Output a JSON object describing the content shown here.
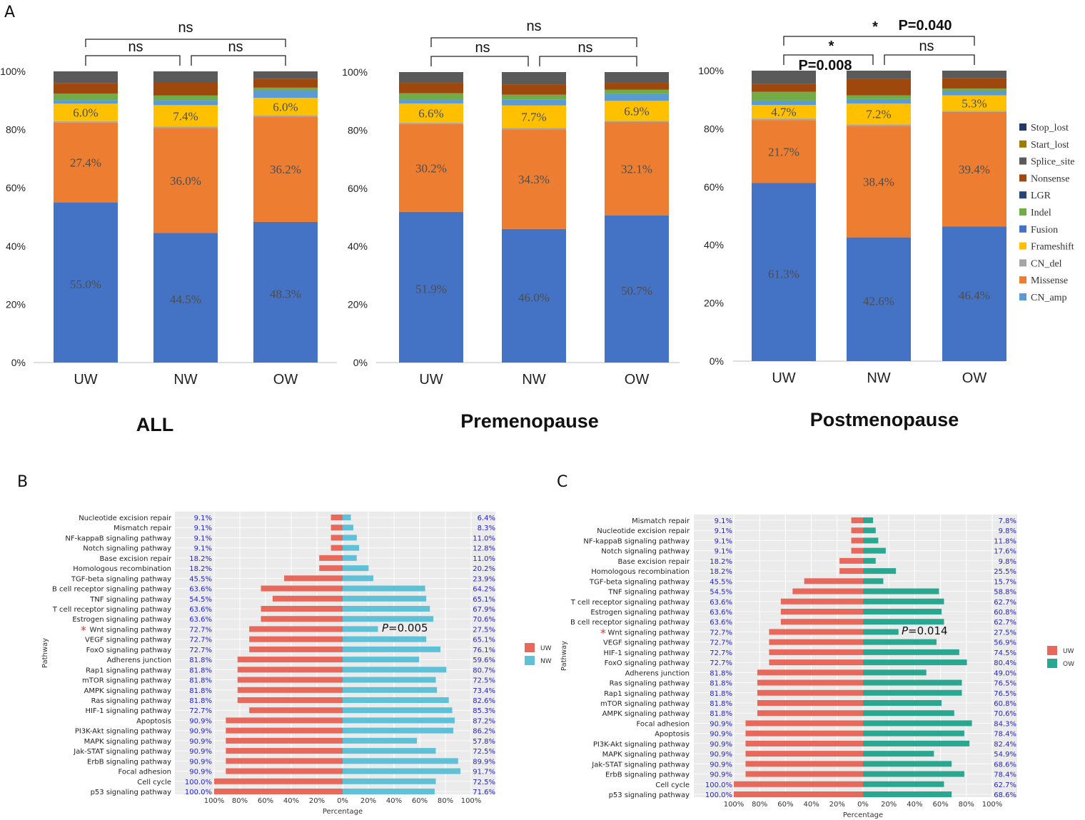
{
  "panel_letters": {
    "a": "A",
    "b": "B",
    "c": "C"
  },
  "chart_data": [
    {
      "type": "bar",
      "stacked": true,
      "title": "ALL",
      "categories": [
        "UW",
        "NW",
        "OW"
      ],
      "y_ticks": [
        "0%",
        "20%",
        "40%",
        "60%",
        "80%",
        "100%"
      ],
      "ylim": [
        0,
        100
      ],
      "segment_order": [
        "Fusion",
        "Missense",
        "CN_del",
        "Frameshift",
        "CN_amp",
        "Indel",
        "Nonsense",
        "Splice_site"
      ],
      "stacks": [
        {
          "Fusion": 55.0,
          "Missense": 27.4,
          "CN_del": 0.5,
          "Frameshift": 6.0,
          "CN_amp": 1.2,
          "Indel": 2.3,
          "Nonsense": 3.6,
          "Splice_site": 4.0
        },
        {
          "Fusion": 44.5,
          "Missense": 36.0,
          "CN_del": 0.5,
          "Frameshift": 7.4,
          "CN_amp": 1.7,
          "Indel": 1.6,
          "Nonsense": 4.5,
          "Splice_site": 3.8
        },
        {
          "Fusion": 48.3,
          "Missense": 36.2,
          "CN_del": 0.4,
          "Frameshift": 6.0,
          "CN_amp": 2.6,
          "Indel": 0.9,
          "Nonsense": 3.1,
          "Splice_site": 2.5
        }
      ],
      "data_labels": [
        {
          "Fusion": "55.0%",
          "Missense": "27.4%",
          "Frameshift": "6.0%"
        },
        {
          "Fusion": "44.5%",
          "Missense": "36.0%",
          "Frameshift": "7.4%"
        },
        {
          "Fusion": "48.3%",
          "Missense": "36.2%",
          "Frameshift": "6.0%"
        }
      ],
      "comparisons": [
        {
          "pair": "UW-NW",
          "label": "ns"
        },
        {
          "pair": "NW-OW",
          "label": "ns"
        },
        {
          "pair": "UW-OW",
          "label": "ns"
        }
      ]
    },
    {
      "type": "bar",
      "stacked": true,
      "title": "Premenopause",
      "categories": [
        "UW",
        "NW",
        "OW"
      ],
      "y_ticks": [
        "0%",
        "20%",
        "40%",
        "60%",
        "80%",
        "100%"
      ],
      "ylim": [
        0,
        100
      ],
      "segment_order": [
        "Fusion",
        "Missense",
        "CN_del",
        "Frameshift",
        "CN_amp",
        "Indel",
        "Nonsense",
        "Splice_site"
      ],
      "stacks": [
        {
          "Fusion": 51.9,
          "Missense": 30.2,
          "CN_del": 0.5,
          "Frameshift": 6.6,
          "CN_amp": 1.2,
          "Indel": 2.3,
          "Nonsense": 3.6,
          "Splice_site": 3.7
        },
        {
          "Fusion": 46.0,
          "Missense": 34.3,
          "CN_del": 0.5,
          "Frameshift": 7.7,
          "CN_amp": 2.1,
          "Indel": 1.6,
          "Nonsense": 3.6,
          "Splice_site": 4.2
        },
        {
          "Fusion": 50.7,
          "Missense": 32.1,
          "CN_del": 0.4,
          "Frameshift": 6.9,
          "CN_amp": 2.5,
          "Indel": 1.3,
          "Nonsense": 2.4,
          "Splice_site": 3.7
        }
      ],
      "data_labels": [
        {
          "Fusion": "51.9%",
          "Missense": "30.2%",
          "Frameshift": "6.6%"
        },
        {
          "Fusion": "46.0%",
          "Missense": "34.3%",
          "Frameshift": "7.7%"
        },
        {
          "Fusion": "50.7%",
          "Missense": "32.1%",
          "Frameshift": "6.9%"
        }
      ],
      "comparisons": [
        {
          "pair": "UW-NW",
          "label": "ns"
        },
        {
          "pair": "NW-OW",
          "label": "ns"
        },
        {
          "pair": "UW-OW",
          "label": "ns"
        }
      ]
    },
    {
      "type": "bar",
      "stacked": true,
      "title": "Postmenopause",
      "categories": [
        "UW",
        "NW",
        "OW"
      ],
      "y_ticks": [
        "0%",
        "20%",
        "40%",
        "60%",
        "80%",
        "100%"
      ],
      "ylim": [
        0,
        100
      ],
      "segment_order": [
        "Fusion",
        "Missense",
        "CN_del",
        "Frameshift",
        "CN_amp",
        "Indel",
        "Nonsense",
        "Splice_site"
      ],
      "stacks": [
        {
          "Fusion": 61.3,
          "Missense": 21.7,
          "CN_del": 0.5,
          "Frameshift": 4.7,
          "CN_amp": 1.5,
          "Indel": 3.0,
          "Nonsense": 2.8,
          "Splice_site": 4.5
        },
        {
          "Fusion": 42.6,
          "Missense": 38.4,
          "CN_del": 0.5,
          "Frameshift": 7.2,
          "CN_amp": 1.5,
          "Indel": 1.3,
          "Nonsense": 5.7,
          "Splice_site": 2.8
        },
        {
          "Fusion": 46.4,
          "Missense": 39.4,
          "CN_del": 0.4,
          "Frameshift": 5.3,
          "CN_amp": 1.5,
          "Indel": 0.8,
          "Nonsense": 3.7,
          "Splice_site": 2.5
        }
      ],
      "data_labels": [
        {
          "Fusion": "61.3%",
          "Missense": "21.7%",
          "Frameshift": "4.7%"
        },
        {
          "Fusion": "42.6%",
          "Missense": "38.4%",
          "Frameshift": "7.2%"
        },
        {
          "Fusion": "46.4%",
          "Missense": "39.4%",
          "Frameshift": "5.3%"
        }
      ],
      "comparisons": [
        {
          "pair": "UW-NW",
          "label": "*",
          "p": "P=0.008"
        },
        {
          "pair": "NW-OW",
          "label": "ns"
        },
        {
          "pair": "UW-OW",
          "label": "*",
          "p": "P=0.040"
        }
      ],
      "legend": [
        "Stop_lost",
        "Start_lost",
        "Splice_site",
        "Nonsense",
        "LGR",
        "Indel",
        "Fusion",
        "Frameshift",
        "CN_del",
        "Missense",
        "CN_amp"
      ]
    },
    {
      "type": "bar",
      "orientation": "horizontal-diverging",
      "panel": "B",
      "ylabel": "Pathway",
      "xlabel": "Percentage",
      "x_ticks": [
        "100%",
        "80%",
        "60%",
        "40%",
        "20%",
        "0%",
        "20%",
        "40%",
        "60%",
        "80%",
        "100%"
      ],
      "series": [
        {
          "name": "UW"
        },
        {
          "name": "NW"
        }
      ],
      "rows": [
        {
          "pathway": "Nucleotide excision repair",
          "left": 9.1,
          "right": 6.4,
          "left_label": "9.1%",
          "right_label": "6.4%",
          "marked": false
        },
        {
          "pathway": "Mismatch repair",
          "left": 9.1,
          "right": 8.3,
          "left_label": "9.1%",
          "right_label": "8.3%",
          "marked": false
        },
        {
          "pathway": "NF-kappaB signaling pathway",
          "left": 9.1,
          "right": 11.0,
          "left_label": "9.1%",
          "right_label": "11.0%",
          "marked": false
        },
        {
          "pathway": "Notch signaling pathway",
          "left": 9.1,
          "right": 12.8,
          "left_label": "9.1%",
          "right_label": "12.8%",
          "marked": false
        },
        {
          "pathway": "Base excision repair",
          "left": 18.2,
          "right": 11.0,
          "left_label": "18.2%",
          "right_label": "11.0%",
          "marked": false
        },
        {
          "pathway": "Homologous recombination",
          "left": 18.2,
          "right": 20.2,
          "left_label": "18.2%",
          "right_label": "20.2%",
          "marked": false
        },
        {
          "pathway": "TGF-beta signaling pathway",
          "left": 45.5,
          "right": 23.9,
          "left_label": "45.5%",
          "right_label": "23.9%",
          "marked": false
        },
        {
          "pathway": "B cell receptor signaling pathway",
          "left": 63.6,
          "right": 64.2,
          "left_label": "63.6%",
          "right_label": "64.2%",
          "marked": false
        },
        {
          "pathway": "TNF signaling pathway",
          "left": 54.5,
          "right": 65.1,
          "left_label": "54.5%",
          "right_label": "65.1%",
          "marked": false
        },
        {
          "pathway": "T cell receptor signaling pathway",
          "left": 63.6,
          "right": 67.9,
          "left_label": "63.6%",
          "right_label": "67.9%",
          "marked": false
        },
        {
          "pathway": "Estrogen signaling pathway",
          "left": 63.6,
          "right": 70.6,
          "left_label": "63.6%",
          "right_label": "70.6%",
          "marked": false
        },
        {
          "pathway": "Wnt signaling pathway",
          "left": 72.7,
          "right": 27.5,
          "left_label": "72.7%",
          "right_label": "27.5%",
          "marked": true
        },
        {
          "pathway": "VEGF signaling pathway",
          "left": 72.7,
          "right": 65.1,
          "left_label": "72.7%",
          "right_label": "65.1%",
          "marked": false
        },
        {
          "pathway": "FoxO signaling pathway",
          "left": 72.7,
          "right": 76.1,
          "left_label": "72.7%",
          "right_label": "76.1%",
          "marked": false
        },
        {
          "pathway": "Adherens junction",
          "left": 81.8,
          "right": 59.6,
          "left_label": "81.8%",
          "right_label": "59.6%",
          "marked": false
        },
        {
          "pathway": "Rap1 signaling pathway",
          "left": 81.8,
          "right": 80.7,
          "left_label": "81.8%",
          "right_label": "80.7%",
          "marked": false
        },
        {
          "pathway": "mTOR signaling pathway",
          "left": 81.8,
          "right": 72.5,
          "left_label": "81.8%",
          "right_label": "72.5%",
          "marked": false
        },
        {
          "pathway": "AMPK signaling pathway",
          "left": 81.8,
          "right": 73.4,
          "left_label": "81.8%",
          "right_label": "73.4%",
          "marked": false
        },
        {
          "pathway": "Ras signaling pathway",
          "left": 81.8,
          "right": 82.6,
          "left_label": "81.8%",
          "right_label": "82.6%",
          "marked": false
        },
        {
          "pathway": "HIF-1 signaling pathway",
          "left": 72.7,
          "right": 85.3,
          "left_label": "72.7%",
          "right_label": "85.3%",
          "marked": false
        },
        {
          "pathway": "Apoptosis",
          "left": 90.9,
          "right": 87.2,
          "left_label": "90.9%",
          "right_label": "87.2%",
          "marked": false
        },
        {
          "pathway": "PI3K-Akt signaling pathway",
          "left": 90.9,
          "right": 86.2,
          "left_label": "90.9%",
          "right_label": "86.2%",
          "marked": false
        },
        {
          "pathway": "MAPK signaling pathway",
          "left": 90.9,
          "right": 57.8,
          "left_label": "90.9%",
          "right_label": "57.8%",
          "marked": false
        },
        {
          "pathway": "Jak-STAT signaling pathway",
          "left": 90.9,
          "right": 72.5,
          "left_label": "90.9%",
          "right_label": "72.5%",
          "marked": false
        },
        {
          "pathway": "ErbB signaling pathway",
          "left": 90.9,
          "right": 89.9,
          "left_label": "90.9%",
          "right_label": "89.9%",
          "marked": false
        },
        {
          "pathway": "Focal adhesion",
          "left": 90.9,
          "right": 91.7,
          "left_label": "90.9%",
          "right_label": "91.7%",
          "marked": false
        },
        {
          "pathway": "Cell cycle",
          "left": 100.0,
          "right": 72.5,
          "left_label": "100.0%",
          "right_label": "72.5%",
          "marked": false
        },
        {
          "pathway": "p53 signaling pathway",
          "left": 100.0,
          "right": 71.6,
          "left_label": "100.0%",
          "right_label": "71.6%",
          "marked": false
        }
      ],
      "annotation": {
        "p_symbol": "P",
        "p_value": "=0.005",
        "row": "Wnt signaling pathway"
      }
    },
    {
      "type": "bar",
      "orientation": "horizontal-diverging",
      "panel": "C",
      "ylabel": "Pathway",
      "xlabel": "Percentage",
      "x_ticks": [
        "100%",
        "80%",
        "60%",
        "40%",
        "20%",
        "0%",
        "20%",
        "40%",
        "60%",
        "80%",
        "100%"
      ],
      "series": [
        {
          "name": "UW"
        },
        {
          "name": "OW"
        }
      ],
      "rows": [
        {
          "pathway": "Mismatch repair",
          "left": 9.1,
          "right": 7.8,
          "left_label": "9.1%",
          "right_label": "7.8%",
          "marked": false
        },
        {
          "pathway": "Nucleotide excision repair",
          "left": 9.1,
          "right": 9.8,
          "left_label": "9.1%",
          "right_label": "9.8%",
          "marked": false
        },
        {
          "pathway": "NF-kappaB signaling pathway",
          "left": 9.1,
          "right": 11.8,
          "left_label": "9.1%",
          "right_label": "11.8%",
          "marked": false
        },
        {
          "pathway": "Notch signaling pathway",
          "left": 9.1,
          "right": 17.6,
          "left_label": "9.1%",
          "right_label": "17.6%",
          "marked": false
        },
        {
          "pathway": "Base excision repair",
          "left": 18.2,
          "right": 9.8,
          "left_label": "18.2%",
          "right_label": "9.8%",
          "marked": false
        },
        {
          "pathway": "Homologous recombination",
          "left": 18.2,
          "right": 25.5,
          "left_label": "18.2%",
          "right_label": "25.5%",
          "marked": false
        },
        {
          "pathway": "TGF-beta signaling pathway",
          "left": 45.5,
          "right": 15.7,
          "left_label": "45.5%",
          "right_label": "15.7%",
          "marked": false
        },
        {
          "pathway": "TNF signaling pathway",
          "left": 54.5,
          "right": 58.8,
          "left_label": "54.5%",
          "right_label": "58.8%",
          "marked": false
        },
        {
          "pathway": "T cell receptor signaling pathway",
          "left": 63.6,
          "right": 62.7,
          "left_label": "63.6%",
          "right_label": "62.7%",
          "marked": false
        },
        {
          "pathway": "Estrogen signaling pathway",
          "left": 63.6,
          "right": 60.8,
          "left_label": "63.6%",
          "right_label": "60.8%",
          "marked": false
        },
        {
          "pathway": "B cell receptor signaling pathway",
          "left": 63.6,
          "right": 62.7,
          "left_label": "63.6%",
          "right_label": "62.7%",
          "marked": false
        },
        {
          "pathway": "Wnt signaling pathway",
          "left": 72.7,
          "right": 27.5,
          "left_label": "72.7%",
          "right_label": "27.5%",
          "marked": true
        },
        {
          "pathway": "VEGF signaling pathway",
          "left": 72.7,
          "right": 56.9,
          "left_label": "72.7%",
          "right_label": "56.9%",
          "marked": false
        },
        {
          "pathway": "HIF-1 signaling pathway",
          "left": 72.7,
          "right": 74.5,
          "left_label": "72.7%",
          "right_label": "74.5%",
          "marked": false
        },
        {
          "pathway": "FoxO signaling pathway",
          "left": 72.7,
          "right": 80.4,
          "left_label": "72.7%",
          "right_label": "80.4%",
          "marked": false
        },
        {
          "pathway": "Adherens junction",
          "left": 81.8,
          "right": 49.0,
          "left_label": "81.8%",
          "right_label": "49.0%",
          "marked": false
        },
        {
          "pathway": "Ras signaling pathway",
          "left": 81.8,
          "right": 76.5,
          "left_label": "81.8%",
          "right_label": "76.5%",
          "marked": false
        },
        {
          "pathway": "Rap1 signaling pathway",
          "left": 81.8,
          "right": 76.5,
          "left_label": "81.8%",
          "right_label": "76.5%",
          "marked": false
        },
        {
          "pathway": "mTOR signaling pathway",
          "left": 81.8,
          "right": 60.8,
          "left_label": "81.8%",
          "right_label": "60.8%",
          "marked": false
        },
        {
          "pathway": "AMPK signaling pathway",
          "left": 81.8,
          "right": 70.6,
          "left_label": "81.8%",
          "right_label": "70.6%",
          "marked": false
        },
        {
          "pathway": "Focal adhesion",
          "left": 90.9,
          "right": 84.3,
          "left_label": "90.9%",
          "right_label": "84.3%",
          "marked": false
        },
        {
          "pathway": "Apoptosis",
          "left": 90.9,
          "right": 78.4,
          "left_label": "90.9%",
          "right_label": "78.4%",
          "marked": false
        },
        {
          "pathway": "PI3K-Akt signaling pathway",
          "left": 90.9,
          "right": 82.4,
          "left_label": "90.9%",
          "right_label": "82.4%",
          "marked": false
        },
        {
          "pathway": "MAPK signaling pathway",
          "left": 90.9,
          "right": 54.9,
          "left_label": "90.9%",
          "right_label": "54.9%",
          "marked": false
        },
        {
          "pathway": "Jak-STAT signaling pathway",
          "left": 90.9,
          "right": 68.6,
          "left_label": "90.9%",
          "right_label": "68.6%",
          "marked": false
        },
        {
          "pathway": "ErbB signaling pathway",
          "left": 90.9,
          "right": 78.4,
          "left_label": "90.9%",
          "right_label": "78.4%",
          "marked": false
        },
        {
          "pathway": "Cell cycle",
          "left": 100.0,
          "right": 62.7,
          "left_label": "100.0%",
          "right_label": "62.7%",
          "marked": false
        },
        {
          "pathway": "p53 signaling pathway",
          "left": 100.0,
          "right": 68.6,
          "left_label": "100.0%",
          "right_label": "68.6%",
          "marked": false
        }
      ],
      "annotation": {
        "p_symbol": "P",
        "p_value": "=0.014",
        "row": "Wnt signaling pathway"
      }
    }
  ],
  "colors": {
    "Stop_lost": "#1f3864",
    "Start_lost": "#9c7c00",
    "Splice_site": "#5a5a5a",
    "Nonsense": "#9e480e",
    "LGR": "#264478",
    "Indel": "#70ad47",
    "Fusion": "#4472c4",
    "Frameshift": "#ffc000",
    "CN_del": "#a5a5a5",
    "Missense": "#ed7d31",
    "CN_amp": "#5b9bd5",
    "left_bar": "#e8685b",
    "nw_bar": "#5fc1d8",
    "ow_bar": "#2aa790",
    "panel_bg": "#ebebeb",
    "grid": "#ffffff",
    "pct_text": "#2222cc",
    "star": "#e03030"
  }
}
